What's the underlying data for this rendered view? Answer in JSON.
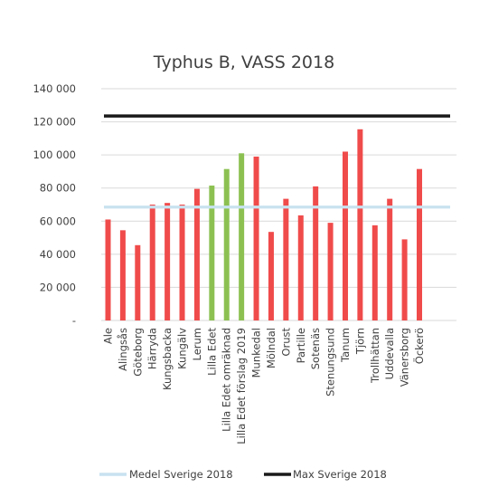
{
  "chart_data": {
    "type": "bar",
    "title": "Typhus B, VASS 2018",
    "xlabel": "",
    "ylabel": "",
    "ylim": [
      0,
      140000
    ],
    "yticks": [
      0,
      20000,
      40000,
      60000,
      80000,
      100000,
      120000,
      140000
    ],
    "ytick_labels": [
      "-",
      "20 000",
      "40 000",
      "60 000",
      "80 000",
      "100 000",
      "120 000",
      "140 000"
    ],
    "grid": true,
    "categories": [
      "Ale",
      "Alingsås",
      "Göteborg",
      "Härryda",
      "Kungsbacka",
      "Kungälv",
      "Lerum",
      "Lilla Edet",
      "Lilla Edet omräknad",
      "Lilla Edet förslag 2019",
      "Munkedal",
      "Mölndal",
      "Orust",
      "Partille",
      "Sotenäs",
      "Stenungsund",
      "Tanum",
      "Tjörn",
      "Trollhättan",
      "Uddevalla",
      "Vänersborg",
      "Öckerö"
    ],
    "values": [
      61000,
      54500,
      45500,
      70000,
      71000,
      70000,
      79500,
      81500,
      91500,
      101000,
      99000,
      53500,
      73500,
      63500,
      81000,
      59000,
      102000,
      115500,
      57500,
      73500,
      49000,
      91500
    ],
    "bar_colors": [
      "#f04b4b",
      "#f04b4b",
      "#f04b4b",
      "#f04b4b",
      "#f04b4b",
      "#f04b4b",
      "#f04b4b",
      "#8cc152",
      "#8cc152",
      "#8cc152",
      "#f04b4b",
      "#f04b4b",
      "#f04b4b",
      "#f04b4b",
      "#f04b4b",
      "#f04b4b",
      "#f04b4b",
      "#f04b4b",
      "#f04b4b",
      "#f04b4b",
      "#f04b4b",
      "#f04b4b"
    ],
    "reference_lines": [
      {
        "name": "Medel Sverige 2018",
        "value": 68500,
        "color": "#c9e2f0"
      },
      {
        "name": "Max Sverige 2018",
        "value": 123500,
        "color": "#1a1a1a"
      }
    ],
    "legend_position": "bottom"
  }
}
